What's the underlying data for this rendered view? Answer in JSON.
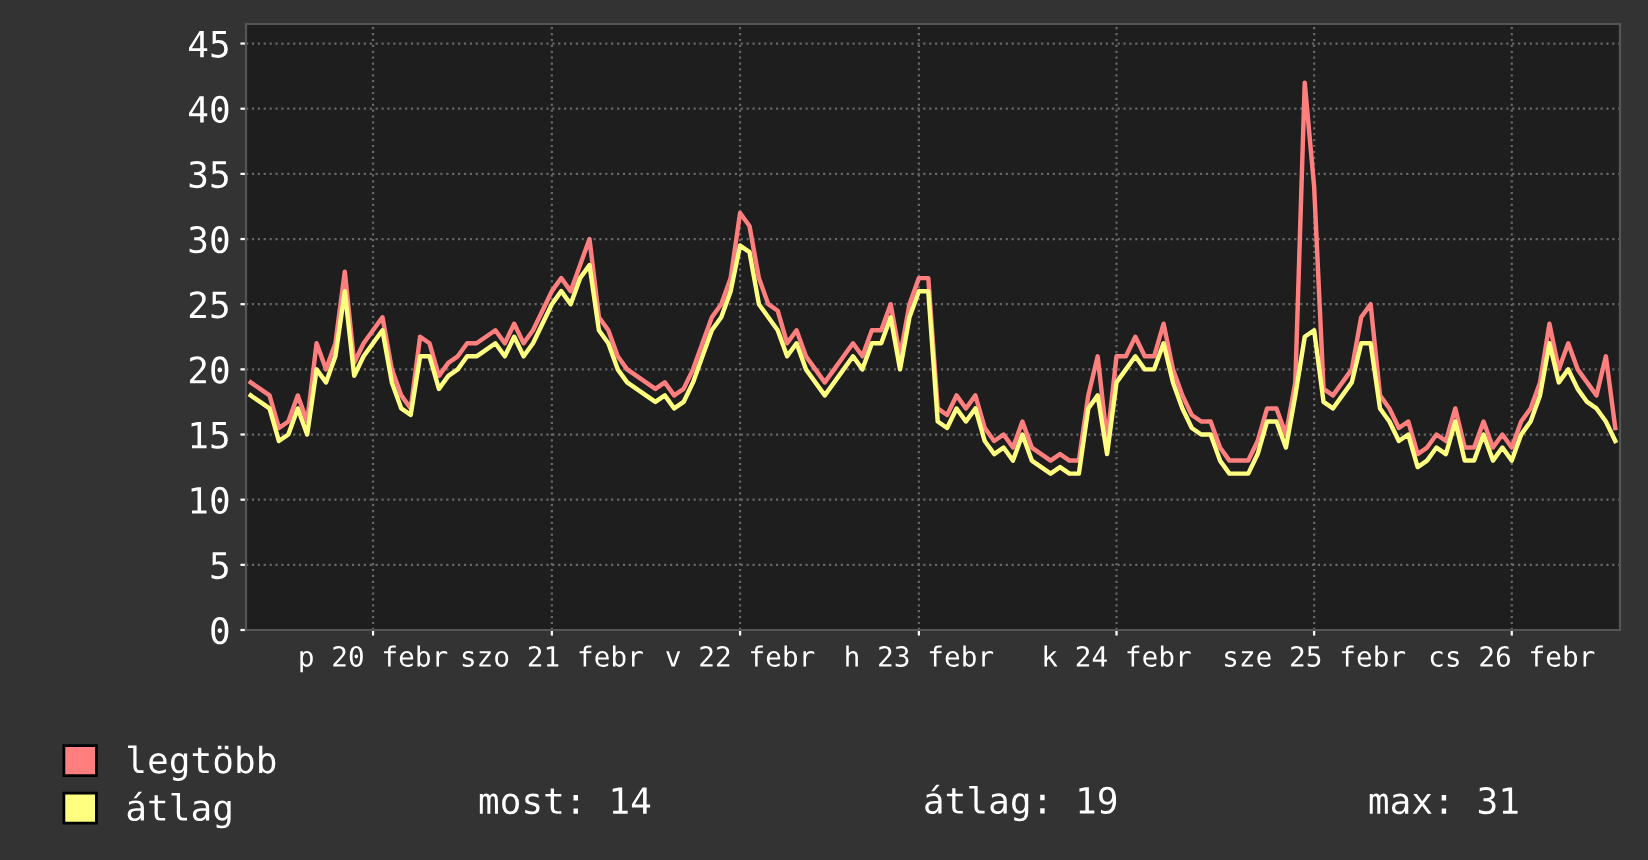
{
  "chart_data": {
    "type": "line",
    "categories": [
      null,
      null,
      null,
      null,
      null,
      null,
      null,
      null,
      null,
      null,
      null,
      null,
      null,
      "p 20 febr",
      null,
      null,
      null,
      null,
      null,
      null,
      null,
      null,
      null,
      null,
      null,
      null,
      null,
      null,
      null,
      null,
      null,
      null,
      "szo 21 febr",
      null,
      null,
      null,
      null,
      null,
      null,
      null,
      null,
      null,
      null,
      null,
      null,
      null,
      null,
      null,
      null,
      null,
      null,
      null,
      "v 22 febr",
      null,
      null,
      null,
      null,
      null,
      null,
      null,
      null,
      null,
      null,
      null,
      null,
      null,
      null,
      null,
      null,
      null,
      null,
      "h 23 febr",
      null,
      null,
      null,
      null,
      null,
      null,
      null,
      null,
      null,
      null,
      null,
      null,
      null,
      null,
      null,
      null,
      null,
      null,
      null,
      null,
      "k 24 febr",
      null,
      null,
      null,
      null,
      null,
      null,
      null,
      null,
      null,
      null,
      null,
      null,
      null,
      null,
      null,
      null,
      null,
      null,
      null,
      null,
      "sze 25 febr",
      null,
      null,
      null,
      null,
      null,
      null,
      null,
      null,
      null,
      null,
      null,
      null,
      null,
      null,
      null,
      null,
      null,
      null,
      null,
      null,
      "cs 26 febr",
      null,
      null,
      null,
      null,
      null,
      null,
      null,
      null,
      null,
      null,
      null
    ],
    "series": [
      {
        "name": "legtöbb",
        "color": "#ff7f7f",
        "values": [
          19,
          18.5,
          18,
          15.5,
          16,
          18,
          16,
          22,
          20,
          22,
          27.5,
          20.5,
          22,
          23,
          24,
          20,
          18,
          17,
          22.5,
          22,
          19.5,
          20.5,
          21,
          22,
          22,
          22.5,
          23,
          22,
          23.5,
          22,
          23,
          24.5,
          26,
          27,
          26,
          28,
          30,
          24,
          23,
          21,
          20,
          19.5,
          19,
          18.5,
          19,
          18,
          18.5,
          20,
          22,
          24,
          25,
          27,
          32,
          31,
          27,
          25,
          24.5,
          22,
          23,
          21,
          20,
          19,
          20,
          21,
          22,
          21,
          23,
          23,
          25,
          21,
          25,
          27,
          27,
          17,
          16.5,
          18,
          17,
          18,
          15.5,
          14.5,
          15,
          14,
          16,
          14,
          13.5,
          13,
          13.5,
          13,
          13,
          18,
          21,
          14.5,
          21,
          21,
          22.5,
          21,
          21,
          23.5,
          20,
          18,
          16.5,
          16,
          16,
          14,
          13,
          13,
          13,
          14.5,
          17,
          17,
          15,
          19,
          42,
          34,
          18.5,
          18,
          19,
          20,
          24,
          25,
          18,
          17,
          15.5,
          16,
          13.5,
          14,
          15,
          14.5,
          17,
          14,
          14,
          16,
          14,
          15,
          14,
          16,
          17,
          19,
          23.5,
          20,
          22,
          20,
          19,
          18,
          21,
          15.5
        ]
      },
      {
        "name": "átlag",
        "color": "#ffff80",
        "values": [
          18,
          17.5,
          17,
          14.5,
          15,
          17,
          15,
          20,
          19,
          21,
          26,
          19.5,
          21,
          22,
          23,
          19,
          17,
          16.5,
          21,
          21,
          18.5,
          19.5,
          20,
          21,
          21,
          21.5,
          22,
          21,
          22.5,
          21,
          22,
          23.5,
          25,
          26,
          25,
          27,
          28,
          23,
          22,
          20,
          19,
          18.5,
          18,
          17.5,
          18,
          17,
          17.5,
          19,
          21,
          23,
          24,
          26,
          29.5,
          29,
          25,
          24,
          23,
          21,
          22,
          20,
          19,
          18,
          19,
          20,
          21,
          20,
          22,
          22,
          24,
          20,
          24,
          26,
          26,
          16,
          15.5,
          17,
          16,
          17,
          14.5,
          13.5,
          14,
          13,
          15,
          13,
          12.5,
          12,
          12.5,
          12,
          12,
          17,
          18,
          13.5,
          19,
          20,
          21,
          20,
          20,
          22,
          19,
          17,
          15.5,
          15,
          15,
          13,
          12,
          12,
          12,
          13.5,
          16,
          16,
          14,
          18,
          22.5,
          23,
          17.5,
          17,
          18,
          19,
          22,
          22,
          17,
          16,
          14.5,
          15,
          12.5,
          13,
          14,
          13.5,
          16,
          13,
          13,
          15,
          13,
          14,
          13,
          15,
          16,
          18,
          22,
          19,
          20,
          18.5,
          17.5,
          17,
          16,
          14.5
        ]
      }
    ],
    "ylim": [
      0,
      46.5
    ],
    "yticks": [
      0,
      5,
      10,
      15,
      20,
      25,
      30,
      35,
      40,
      45
    ],
    "grid": true,
    "legend": "bottom left",
    "annotations": [
      "most: 14",
      "átlag: 19",
      "max: 31"
    ]
  }
}
